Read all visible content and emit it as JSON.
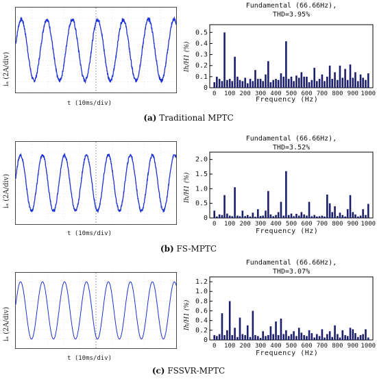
{
  "panels": [
    {
      "caption_letter": "(a)",
      "caption_text": "Traditional MPTC",
      "wave": {
        "ylabel": "iₐ (2A/div)",
        "xlabel": "t (10ms/div)"
      },
      "spectrum_title_line1": "Fundamental (66.66Hz),",
      "spectrum_title_line2": "THD=3.95%",
      "ylabel": "Ih/H1 (%)",
      "xlabel": "Frequency (Hz)"
    },
    {
      "caption_letter": "(b)",
      "caption_text": "FS-MPTC",
      "wave": {
        "ylabel": "iₐ (2A/div)",
        "xlabel": "t (10ms/div)"
      },
      "spectrum_title_line1": "Fundamental (66.66Hz),",
      "spectrum_title_line2": "THD=3.52%",
      "ylabel": "Ih/H1 (%)",
      "xlabel": "Frequency (Hz)"
    },
    {
      "caption_letter": "(c)",
      "caption_text": "FSSVR-MPTC",
      "wave": {
        "ylabel": "iₐ (2A/div)",
        "xlabel": "t (10ms/div)"
      },
      "spectrum_title_line1": "Fundamental (66.66Hz),",
      "spectrum_title_line2": "THD=3.07%",
      "ylabel": "Ih/H1 (%)",
      "xlabel": "Frequency (Hz)"
    }
  ],
  "chart_data": [
    {
      "type": "bar",
      "title": "Fundamental (66.66Hz), THD=3.95%",
      "xlabel": "Frequency (Hz)",
      "ylabel": "Ih/H1 (%)",
      "xlim": [
        -30,
        1030
      ],
      "ylim": [
        0,
        0.57
      ],
      "xticks": [
        0,
        100,
        200,
        300,
        400,
        500,
        600,
        700,
        800,
        900,
        1000
      ],
      "yticks": [
        0,
        0.1,
        0.2,
        0.3,
        0.4,
        0.5
      ],
      "ytick_labels": [
        "0",
        "0.1",
        "0.2",
        "0.3",
        "0.4",
        "0.5"
      ],
      "color": "#1b1f6b",
      "x": [
        0,
        16,
        33,
        50,
        66,
        83,
        100,
        116,
        133,
        150,
        166,
        183,
        200,
        216,
        233,
        250,
        266,
        283,
        300,
        316,
        333,
        350,
        366,
        383,
        400,
        416,
        433,
        450,
        466,
        483,
        500,
        516,
        533,
        550,
        566,
        583,
        600,
        616,
        633,
        650,
        666,
        683,
        700,
        716,
        733,
        750,
        766,
        783,
        800,
        816,
        833,
        850,
        866,
        883,
        900,
        916,
        933,
        950,
        966,
        983,
        1000
      ],
      "values": [
        0.05,
        0.1,
        0.08,
        0.06,
        0.5,
        0.07,
        0.08,
        0.06,
        0.28,
        0.1,
        0.07,
        0.06,
        0.09,
        0.04,
        0.08,
        0.06,
        0.16,
        0.08,
        0.08,
        0.06,
        0.12,
        0.24,
        0.05,
        0.07,
        0.08,
        0.07,
        0.13,
        0.1,
        0.42,
        0.08,
        0.1,
        0.06,
        0.11,
        0.09,
        0.14,
        0.1,
        0.1,
        0.05,
        0.07,
        0.18,
        0.06,
        0.08,
        0.12,
        0.06,
        0.1,
        0.2,
        0.08,
        0.14,
        0.07,
        0.2,
        0.09,
        0.17,
        0.07,
        0.21,
        0.09,
        0.14,
        0.06,
        0.12,
        0.09,
        0.07,
        0.13
      ]
    },
    {
      "type": "bar",
      "title": "Fundamental (66.66Hz), THD=3.52%",
      "xlabel": "Frequency (Hz)",
      "ylabel": "Ih/H1 (%)",
      "xlim": [
        -30,
        1030
      ],
      "ylim": [
        0,
        2.25
      ],
      "xticks": [
        0,
        100,
        200,
        300,
        400,
        500,
        600,
        700,
        800,
        900,
        1000
      ],
      "yticks": [
        0,
        0.5,
        1.0,
        1.5,
        2.0
      ],
      "ytick_labels": [
        "0",
        "0.5",
        "1.0",
        "1.5",
        "2.0"
      ],
      "color": "#1b1f6b",
      "x": [
        0,
        16,
        33,
        50,
        66,
        83,
        100,
        116,
        133,
        150,
        166,
        183,
        200,
        216,
        233,
        250,
        266,
        283,
        300,
        316,
        333,
        350,
        366,
        383,
        400,
        416,
        433,
        450,
        466,
        483,
        500,
        516,
        533,
        550,
        566,
        583,
        600,
        616,
        633,
        650,
        666,
        683,
        700,
        716,
        733,
        750,
        766,
        783,
        800,
        816,
        833,
        850,
        866,
        883,
        900,
        916,
        933,
        950,
        966,
        983,
        1000
      ],
      "values": [
        0.25,
        0.05,
        0.12,
        0.1,
        0.78,
        0.15,
        0.08,
        0.06,
        1.05,
        0.08,
        0.06,
        0.25,
        0.06,
        0.1,
        0.05,
        0.18,
        0.04,
        0.3,
        0.06,
        0.08,
        0.25,
        0.92,
        0.12,
        0.06,
        0.1,
        0.2,
        0.55,
        0.08,
        1.6,
        0.1,
        0.15,
        0.06,
        0.14,
        0.08,
        0.2,
        0.12,
        0.08,
        0.55,
        0.06,
        0.1,
        0.05,
        0.06,
        0.08,
        0.05,
        0.8,
        0.5,
        0.2,
        0.4,
        0.06,
        0.18,
        0.1,
        0.05,
        0.3,
        0.78,
        0.2,
        0.12,
        0.05,
        0.08,
        0.3,
        0.1,
        0.48
      ]
    },
    {
      "type": "bar",
      "title": "Fundamental (66.66Hz), THD=3.07%",
      "xlabel": "Frequency (Hz)",
      "ylabel": "Ih/H1 (%)",
      "xlim": [
        -30,
        1030
      ],
      "ylim": [
        0,
        1.3
      ],
      "xticks": [
        0,
        100,
        200,
        300,
        400,
        500,
        600,
        700,
        800,
        900,
        1000
      ],
      "yticks": [
        0,
        0.2,
        0.4,
        0.6,
        0.8,
        1.0,
        1.2
      ],
      "ytick_labels": [
        "0",
        "0.2",
        "0.4",
        "0.6",
        "0.8",
        "1.0",
        "1.2"
      ],
      "color": "#1b1f6b",
      "x": [
        0,
        16,
        33,
        50,
        66,
        83,
        100,
        116,
        133,
        150,
        166,
        183,
        200,
        216,
        233,
        250,
        266,
        283,
        300,
        316,
        333,
        350,
        366,
        383,
        400,
        416,
        433,
        450,
        466,
        483,
        500,
        516,
        533,
        550,
        566,
        583,
        600,
        616,
        633,
        650,
        666,
        683,
        700,
        716,
        733,
        750,
        766,
        783,
        800,
        816,
        833,
        850,
        866,
        883,
        900,
        916,
        933,
        950,
        966,
        983,
        1000
      ],
      "values": [
        0.1,
        0.08,
        0.12,
        0.55,
        0.1,
        0.2,
        0.8,
        0.1,
        0.25,
        0.06,
        0.46,
        0.12,
        0.1,
        0.3,
        0.06,
        0.6,
        0.1,
        0.08,
        0.04,
        0.18,
        0.08,
        0.1,
        0.28,
        0.12,
        0.38,
        0.1,
        0.44,
        0.12,
        0.2,
        0.08,
        0.12,
        0.18,
        0.08,
        0.25,
        0.15,
        0.1,
        0.08,
        0.2,
        0.14,
        0.05,
        0.12,
        0.08,
        0.22,
        0.05,
        0.12,
        0.18,
        0.06,
        0.3,
        0.12,
        0.05,
        0.2,
        0.1,
        0.08,
        0.25,
        0.22,
        0.14,
        0.06,
        0.1,
        0.12,
        0.22,
        0.05
      ]
    }
  ]
}
